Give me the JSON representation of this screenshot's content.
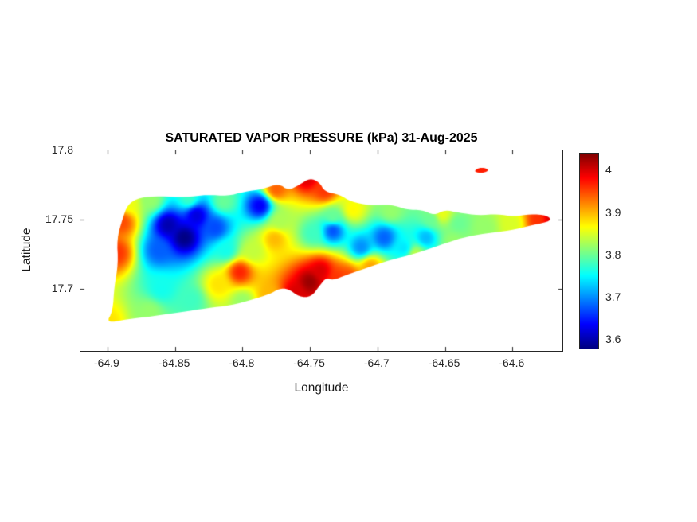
{
  "chart_data": {
    "type": "heatmap",
    "title": "SATURATED VAPOR PRESSURE (kPa) 31-Aug-2025",
    "xlabel": "Longitude",
    "ylabel": "Latitude",
    "xlim": [
      -64.92,
      -64.563
    ],
    "ylim": [
      17.655,
      17.8
    ],
    "clim": [
      3.58,
      4.04
    ],
    "colormap": "jet",
    "grid": false,
    "legend_position": "colorbar-right",
    "x_ticks": {
      "values": [
        -64.9,
        -64.85,
        -64.8,
        -64.75,
        -64.7,
        -64.65,
        -64.6
      ],
      "labels": [
        "-64.9",
        "-64.85",
        "-64.8",
        "-64.75",
        "-64.7",
        "-64.65",
        "-64.6"
      ]
    },
    "y_ticks": {
      "values": [
        17.7,
        17.75,
        17.8
      ],
      "labels": [
        "17.7",
        "17.75",
        "17.8"
      ]
    },
    "colorbar_ticks": {
      "values": [
        3.6,
        3.7,
        3.8,
        3.9,
        4
      ],
      "labels": [
        "3.6",
        "3.7",
        "3.8",
        "3.9",
        "4"
      ]
    },
    "region_outline": [
      [
        -64.901,
        17.675
      ],
      [
        -64.896,
        17.684
      ],
      [
        -64.895,
        17.701
      ],
      [
        -64.892,
        17.718
      ],
      [
        -64.893,
        17.736
      ],
      [
        -64.889,
        17.75
      ],
      [
        -64.885,
        17.761
      ],
      [
        -64.876,
        17.766
      ],
      [
        -64.861,
        17.767
      ],
      [
        -64.843,
        17.766
      ],
      [
        -64.826,
        17.768
      ],
      [
        -64.811,
        17.767
      ],
      [
        -64.799,
        17.77
      ],
      [
        -64.785,
        17.772
      ],
      [
        -64.773,
        17.776
      ],
      [
        -64.766,
        17.771
      ],
      [
        -64.758,
        17.775
      ],
      [
        -64.75,
        17.78
      ],
      [
        -64.743,
        17.777
      ],
      [
        -64.739,
        17.77
      ],
      [
        -64.728,
        17.768
      ],
      [
        -64.72,
        17.763
      ],
      [
        -64.705,
        17.76
      ],
      [
        -64.69,
        17.761
      ],
      [
        -64.678,
        17.757
      ],
      [
        -64.667,
        17.757
      ],
      [
        -64.658,
        17.753
      ],
      [
        -64.65,
        17.757
      ],
      [
        -64.64,
        17.755
      ],
      [
        -64.625,
        17.753
      ],
      [
        -64.611,
        17.754
      ],
      [
        -64.599,
        17.752
      ],
      [
        -64.587,
        17.754
      ],
      [
        -64.574,
        17.753
      ],
      [
        -64.571,
        17.749
      ],
      [
        -64.585,
        17.746
      ],
      [
        -64.602,
        17.742
      ],
      [
        -64.62,
        17.74
      ],
      [
        -64.637,
        17.737
      ],
      [
        -64.655,
        17.731
      ],
      [
        -64.673,
        17.725
      ],
      [
        -64.69,
        17.721
      ],
      [
        -64.708,
        17.715
      ],
      [
        -64.723,
        17.71
      ],
      [
        -64.733,
        17.706
      ],
      [
        -64.738,
        17.708
      ],
      [
        -64.743,
        17.702
      ],
      [
        -64.749,
        17.694
      ],
      [
        -64.758,
        17.694
      ],
      [
        -64.766,
        17.7
      ],
      [
        -64.773,
        17.7
      ],
      [
        -64.78,
        17.696
      ],
      [
        -64.793,
        17.692
      ],
      [
        -64.808,
        17.688
      ],
      [
        -64.826,
        17.686
      ],
      [
        -64.846,
        17.683
      ],
      [
        -64.867,
        17.68
      ],
      [
        -64.885,
        17.678
      ]
    ],
    "islet_outline": [
      [
        -64.628,
        17.7855
      ],
      [
        -64.6245,
        17.7875
      ],
      [
        -64.62,
        17.7872
      ],
      [
        -64.6175,
        17.7855
      ],
      [
        -64.621,
        17.7838
      ],
      [
        -64.627,
        17.784
      ]
    ],
    "islet_value": 3.97,
    "samples": [
      [
        -64.9,
        17.676,
        3.88
      ],
      [
        -64.893,
        17.726,
        3.96
      ],
      [
        -64.889,
        17.748,
        3.95
      ],
      [
        -64.884,
        17.762,
        3.86
      ],
      [
        -64.868,
        17.764,
        3.82
      ],
      [
        -64.855,
        17.746,
        3.6
      ],
      [
        -64.843,
        17.737,
        3.58
      ],
      [
        -64.834,
        17.753,
        3.62
      ],
      [
        -64.862,
        17.728,
        3.68
      ],
      [
        -64.82,
        17.744,
        3.67
      ],
      [
        -64.84,
        17.765,
        3.78
      ],
      [
        -64.814,
        17.763,
        3.8
      ],
      [
        -64.787,
        17.76,
        3.63
      ],
      [
        -64.772,
        17.749,
        3.83
      ],
      [
        -64.775,
        17.772,
        3.94
      ],
      [
        -64.752,
        17.78,
        4.0
      ],
      [
        -64.739,
        17.771,
        3.96
      ],
      [
        -64.776,
        17.736,
        3.9
      ],
      [
        -64.792,
        17.727,
        3.84
      ],
      [
        -64.812,
        17.728,
        3.76
      ],
      [
        -64.802,
        17.712,
        3.97
      ],
      [
        -64.818,
        17.703,
        3.88
      ],
      [
        -64.838,
        17.692,
        3.78
      ],
      [
        -64.86,
        17.7,
        3.76
      ],
      [
        -64.869,
        17.683,
        3.82
      ],
      [
        -64.8,
        17.691,
        3.82
      ],
      [
        -64.78,
        17.695,
        3.9
      ],
      [
        -64.75,
        17.705,
        4.03
      ],
      [
        -64.761,
        17.697,
        4.0
      ],
      [
        -64.742,
        17.713,
        4.0
      ],
      [
        -64.729,
        17.707,
        3.96
      ],
      [
        -64.733,
        17.742,
        3.67
      ],
      [
        -64.748,
        17.74,
        3.78
      ],
      [
        -64.712,
        17.73,
        3.7
      ],
      [
        -64.695,
        17.737,
        3.68
      ],
      [
        -64.68,
        17.729,
        3.74
      ],
      [
        -64.664,
        17.737,
        3.72
      ],
      [
        -64.718,
        17.757,
        3.87
      ],
      [
        -64.733,
        17.752,
        3.8
      ],
      [
        -64.69,
        17.756,
        3.82
      ],
      [
        -64.66,
        17.75,
        3.8
      ],
      [
        -64.652,
        17.754,
        3.86
      ],
      [
        -64.64,
        17.747,
        3.8
      ],
      [
        -64.62,
        17.744,
        3.82
      ],
      [
        -64.6,
        17.747,
        3.85
      ],
      [
        -64.58,
        17.75,
        3.96
      ],
      [
        -64.572,
        17.751,
        4.0
      ],
      [
        -64.705,
        17.716,
        3.91
      ],
      [
        -64.722,
        17.708,
        3.95
      ],
      [
        -64.672,
        17.725,
        3.84
      ],
      [
        -64.644,
        17.734,
        3.82
      ]
    ]
  }
}
